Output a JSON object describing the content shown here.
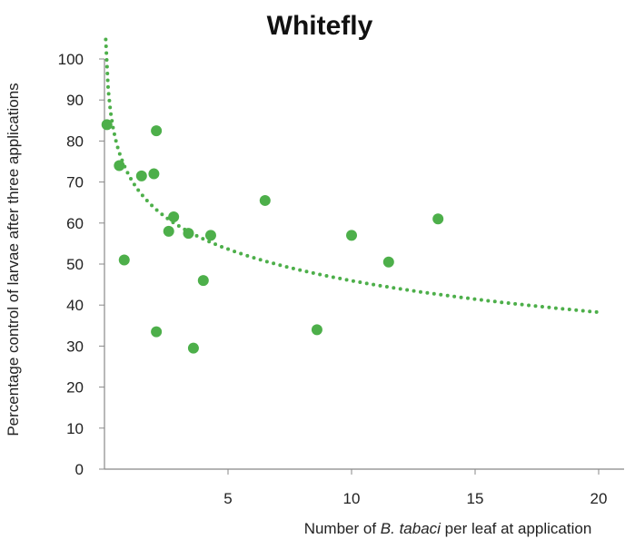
{
  "chart_data": {
    "type": "scatter",
    "title": "Whitefly",
    "ylabel": "Percentage control of larvae after three applications",
    "xlabel": {
      "prefix": "Number of ",
      "italic": "B. tabaci",
      "suffix": " per leaf at application"
    },
    "xlim": [
      0,
      20
    ],
    "ylim": [
      0,
      100
    ],
    "xticks": [
      5,
      10,
      15,
      20
    ],
    "yticks": [
      0,
      10,
      20,
      30,
      40,
      50,
      60,
      70,
      80,
      90,
      100
    ],
    "grid": false,
    "legend": "none",
    "points": [
      {
        "x": 0.1,
        "y": 84
      },
      {
        "x": 0.6,
        "y": 74
      },
      {
        "x": 0.8,
        "y": 51
      },
      {
        "x": 1.5,
        "y": 71.5
      },
      {
        "x": 2.0,
        "y": 72
      },
      {
        "x": 2.1,
        "y": 82.5
      },
      {
        "x": 2.1,
        "y": 33.5
      },
      {
        "x": 2.6,
        "y": 58
      },
      {
        "x": 2.8,
        "y": 61.5
      },
      {
        "x": 3.4,
        "y": 57.5
      },
      {
        "x": 3.6,
        "y": 29.5
      },
      {
        "x": 4.0,
        "y": 46
      },
      {
        "x": 4.3,
        "y": 57
      },
      {
        "x": 6.5,
        "y": 65.5
      },
      {
        "x": 8.6,
        "y": 34
      },
      {
        "x": 10.0,
        "y": 57
      },
      {
        "x": 11.5,
        "y": 50.5
      },
      {
        "x": 13.5,
        "y": 61
      }
    ],
    "trendline": {
      "type": "logarithmic",
      "style": "dotted",
      "a": 71.5,
      "b": -11.1,
      "x_range": [
        0.05,
        20
      ]
    },
    "colors": {
      "points": "#4daf4a",
      "trendline": "#4daf4a",
      "axis": "#888888"
    }
  }
}
